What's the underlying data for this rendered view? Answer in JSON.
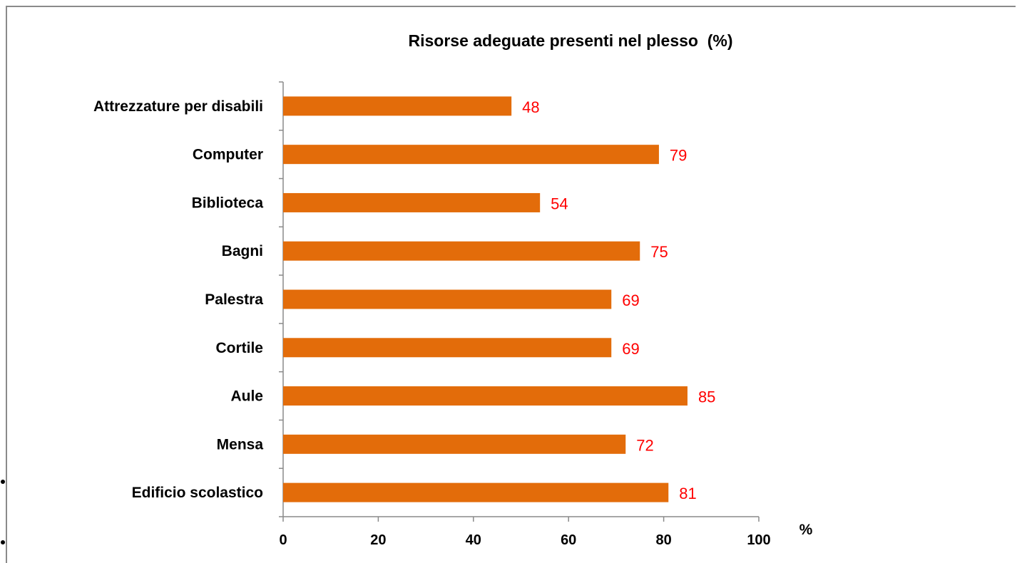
{
  "chart_data": {
    "type": "bar",
    "orientation": "horizontal",
    "title": "Risorse adeguate presenti nel plesso  (%)",
    "xlabel": "%",
    "ylabel": "",
    "categories": [
      "Attrezzature per disabili",
      "Computer",
      "Biblioteca",
      "Bagni",
      "Palestra",
      "Cortile",
      "Aule",
      "Mensa",
      "Edificio scolastico"
    ],
    "values": [
      48,
      79,
      54,
      75,
      69,
      69,
      85,
      72,
      81
    ],
    "xlim": [
      0,
      100
    ],
    "x_ticks": [
      0,
      20,
      40,
      60,
      80,
      100
    ],
    "grid": false,
    "legend": "none",
    "bar_color": "#e36c0a",
    "label_color": "#ff0000"
  }
}
